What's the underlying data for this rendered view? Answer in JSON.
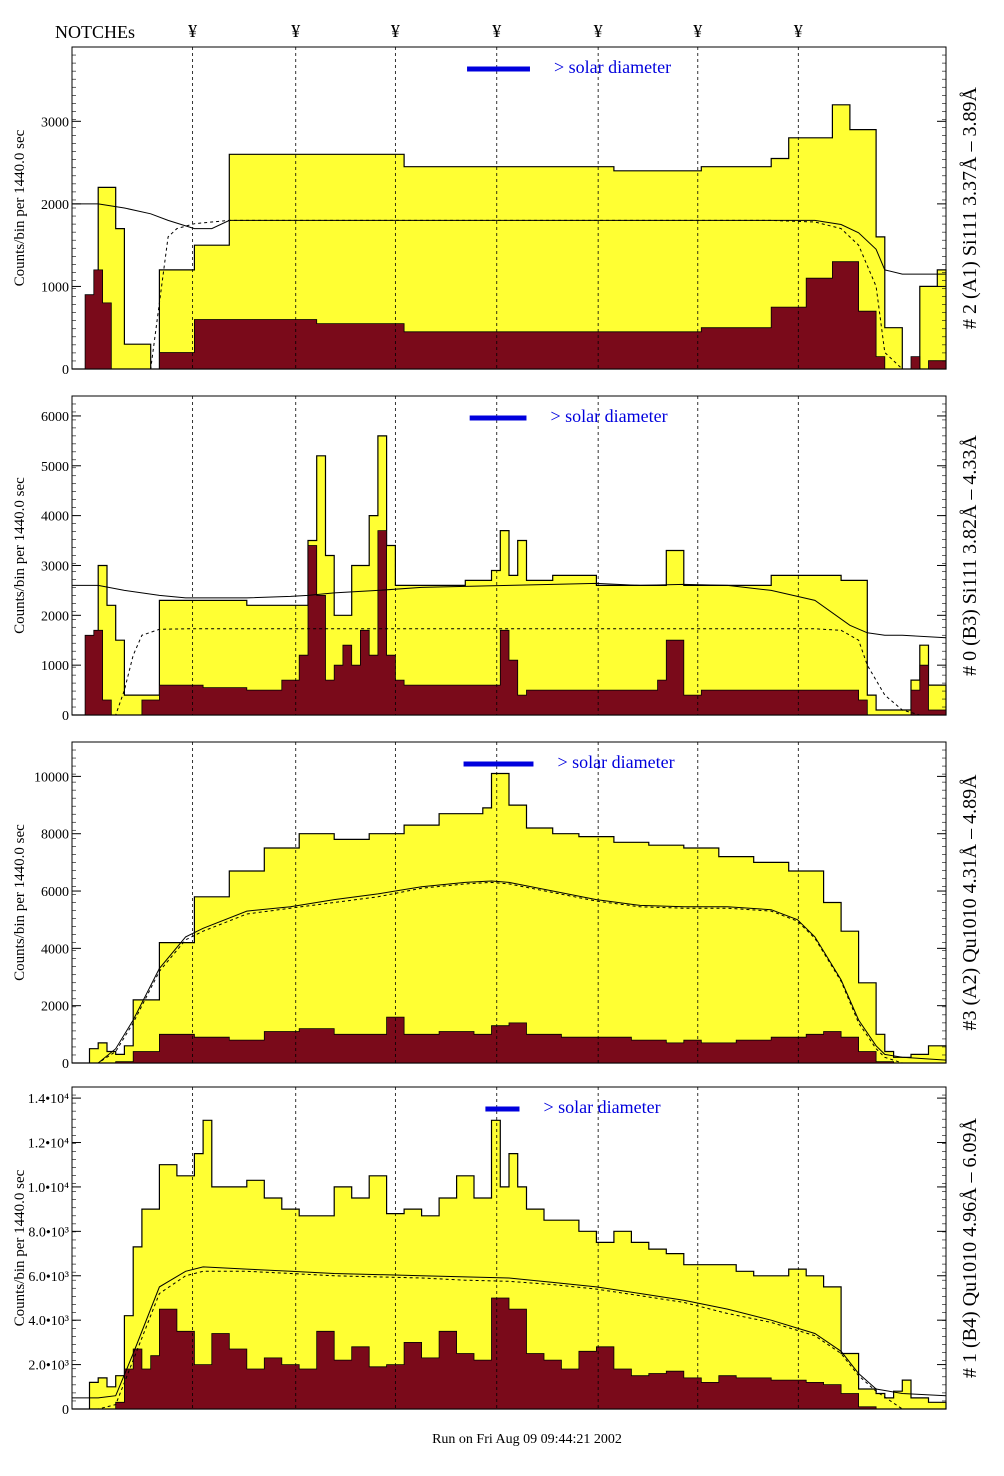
{
  "header": {
    "notches_label": "NOTCHEs",
    "notch_marker": "¥"
  },
  "footer": {
    "run_text": "Run on Fri Aug 09 09:44:21 2002"
  },
  "colors": {
    "total_fill": "#ffff33",
    "component_fill": "#7a0a1a",
    "solar_bar": "#0000dd",
    "axis": "#000000"
  },
  "chart_data": [
    {
      "type": "area",
      "panel_label": "# 2 (A1) Si111  3.37Å – 3.89Å",
      "ylabel": "Counts/bin per  1440.0 sec",
      "solar_label": "> solar diameter",
      "y_ticks": [
        0,
        1000,
        2000,
        3000
      ],
      "y_tick_labels": [
        "0",
        "1000",
        "2000",
        "3000"
      ],
      "ylim": [
        0,
        3900
      ],
      "x_range": [
        0,
        100
      ],
      "notch_x": [
        13.8,
        25.6,
        37.0,
        48.6,
        60.2,
        71.6,
        83.1
      ],
      "solar_bar": [
        45.2,
        52.4
      ],
      "total": {
        "x": [
          0,
          2,
          3,
          5,
          6,
          9,
          10,
          14,
          18,
          28,
          38,
          50,
          62,
          72,
          80,
          82,
          87,
          89,
          92,
          93,
          95,
          97,
          99,
          100
        ],
        "y": [
          0,
          800,
          2200,
          1700,
          300,
          0,
          1200,
          1500,
          2600,
          2600,
          2450,
          2450,
          2400,
          2450,
          2550,
          2800,
          3200,
          2900,
          1600,
          500,
          0,
          1000,
          1200,
          0
        ]
      },
      "component": {
        "x": [
          0,
          1.5,
          2.5,
          3.5,
          4.5,
          6,
          9,
          10,
          14,
          28,
          38,
          50,
          62,
          72,
          80,
          84,
          87,
          90,
          92,
          93,
          95,
          96,
          97,
          98,
          100
        ],
        "y": [
          0,
          900,
          1200,
          800,
          0,
          0,
          0,
          200,
          600,
          550,
          450,
          450,
          450,
          500,
          750,
          1100,
          1300,
          700,
          150,
          0,
          0,
          150,
          0,
          100,
          0
        ]
      },
      "smooth": {
        "x": [
          0,
          3,
          6,
          9,
          11,
          14,
          16,
          18,
          20,
          22,
          30,
          40,
          50,
          60,
          70,
          80,
          85,
          88,
          90,
          92,
          93,
          95,
          100
        ],
        "y": [
          2000,
          2000,
          1950,
          1880,
          1800,
          1700,
          1700,
          1800,
          1800,
          1800,
          1800,
          1800,
          1800,
          1800,
          1800,
          1800,
          1800,
          1750,
          1650,
          1450,
          1200,
          1150,
          1150
        ]
      },
      "dash": {
        "x": [
          0,
          3,
          6,
          9,
          11,
          12,
          14,
          16,
          18,
          20,
          22,
          30,
          40,
          50,
          60,
          70,
          80,
          85,
          88,
          90,
          92,
          93,
          95
        ],
        "y": [
          0,
          0,
          0,
          0,
          1600,
          1700,
          1760,
          1780,
          1800,
          1800,
          1800,
          1800,
          1800,
          1800,
          1800,
          1800,
          1800,
          1780,
          1700,
          1500,
          1000,
          200,
          0
        ]
      }
    },
    {
      "type": "area",
      "panel_label": "# 0 (B3) Si111  3.82Å – 4.33Å",
      "ylabel": "Counts/bin per  1440.0 sec",
      "solar_label": "> solar diameter",
      "y_ticks": [
        0,
        1000,
        2000,
        3000,
        4000,
        5000,
        6000
      ],
      "y_tick_labels": [
        "0",
        "1000",
        "2000",
        "3000",
        "4000",
        "5000",
        "6000"
      ],
      "ylim": [
        0,
        6400
      ],
      "x_range": [
        0,
        100
      ],
      "notch_x": [
        13.8,
        25.6,
        37.0,
        48.6,
        60.2,
        71.6,
        83.1
      ],
      "solar_bar": [
        45.5,
        52.0
      ],
      "total": {
        "x": [
          0,
          2,
          3,
          4,
          5,
          6,
          10,
          15,
          20,
          25,
          27,
          28,
          29,
          30,
          32,
          34,
          35,
          36,
          37,
          38,
          40,
          45,
          48,
          49,
          50,
          51,
          52,
          55,
          60,
          68,
          70,
          75,
          80,
          88,
          91,
          92,
          94,
          96,
          97,
          98,
          100
        ],
        "y": [
          0,
          1500,
          3000,
          2200,
          1500,
          400,
          2300,
          2300,
          2200,
          2200,
          3500,
          5200,
          3200,
          2000,
          3000,
          4000,
          5600,
          3400,
          2600,
          2600,
          2600,
          2700,
          2900,
          3700,
          2800,
          3500,
          2700,
          2800,
          2600,
          3300,
          2600,
          2600,
          2800,
          2700,
          400,
          100,
          100,
          700,
          1400,
          600,
          0
        ]
      },
      "component": {
        "x": [
          0,
          1.5,
          2.5,
          3.5,
          4.5,
          5.5,
          8,
          10,
          15,
          20,
          24,
          26,
          27,
          28,
          29,
          30,
          31,
          32,
          33,
          34,
          35,
          36,
          37,
          38,
          40,
          48,
          49,
          50,
          51,
          52,
          60,
          67,
          68,
          70,
          72,
          80,
          88,
          90,
          91,
          95,
          96,
          97,
          98,
          100
        ],
        "y": [
          0,
          1600,
          1700,
          300,
          0,
          0,
          300,
          600,
          550,
          500,
          700,
          1200,
          3400,
          2400,
          700,
          1000,
          1400,
          1000,
          1700,
          1200,
          3700,
          1200,
          700,
          600,
          600,
          600,
          1700,
          1100,
          400,
          500,
          500,
          700,
          1500,
          400,
          500,
          500,
          500,
          300,
          0,
          0,
          500,
          1000,
          100,
          0
        ]
      },
      "smooth": {
        "x": [
          0,
          3,
          6,
          8,
          10,
          13,
          15,
          20,
          25,
          27,
          30,
          35,
          40,
          45,
          50,
          55,
          60,
          65,
          70,
          75,
          80,
          85,
          89,
          91,
          93,
          95,
          100
        ],
        "y": [
          2600,
          2600,
          2500,
          2450,
          2400,
          2350,
          2350,
          2350,
          2380,
          2400,
          2450,
          2500,
          2560,
          2580,
          2600,
          2620,
          2640,
          2600,
          2620,
          2600,
          2500,
          2300,
          1800,
          1650,
          1600,
          1600,
          1550
        ]
      },
      "dash": {
        "x": [
          0,
          3,
          5,
          6,
          7,
          8,
          10,
          13,
          15,
          20,
          25,
          30,
          35,
          40,
          45,
          50,
          55,
          60,
          65,
          70,
          75,
          80,
          85,
          88,
          90,
          91,
          93,
          95,
          97
        ],
        "y": [
          0,
          0,
          0,
          500,
          1200,
          1600,
          1720,
          1730,
          1730,
          1730,
          1730,
          1730,
          1730,
          1730,
          1730,
          1730,
          1730,
          1730,
          1730,
          1730,
          1730,
          1730,
          1730,
          1700,
          1500,
          1000,
          400,
          100,
          0
        ]
      }
    },
    {
      "type": "area",
      "panel_label": "#3 (A2) Qu1010  4.31Å – 4.89Å",
      "ylabel": "Counts/bin per  1440.0 sec",
      "solar_label": "> solar diameter",
      "y_ticks": [
        0,
        2000,
        4000,
        6000,
        8000,
        10000
      ],
      "y_tick_labels": [
        "0",
        "2000",
        "4000",
        "6000",
        "8000",
        "10000"
      ],
      "ylim": [
        0,
        11200
      ],
      "x_range": [
        0,
        100
      ],
      "notch_x": [
        13.8,
        25.6,
        37.0,
        48.6,
        60.2,
        71.6,
        83.1
      ],
      "solar_bar": [
        44.8,
        52.8
      ],
      "total": {
        "x": [
          0,
          2,
          3,
          4,
          5,
          6,
          7,
          10,
          14,
          18,
          22,
          26,
          30,
          34,
          38,
          42,
          45,
          47,
          48,
          50,
          52,
          55,
          58,
          62,
          66,
          70,
          74,
          78,
          82,
          86,
          88,
          90,
          92,
          93,
          94,
          96,
          98,
          100
        ],
        "y": [
          0,
          500,
          700,
          400,
          300,
          600,
          2200,
          4200,
          5800,
          6700,
          7500,
          8000,
          7800,
          8000,
          8300,
          8700,
          8700,
          8900,
          10100,
          9000,
          8200,
          8000,
          7900,
          7700,
          7600,
          7500,
          7200,
          7000,
          6700,
          5600,
          4600,
          2800,
          1000,
          400,
          200,
          300,
          600,
          0
        ]
      },
      "component": {
        "x": [
          0,
          4,
          5,
          7,
          10,
          14,
          18,
          22,
          26,
          30,
          34,
          36,
          38,
          42,
          46,
          48,
          50,
          52,
          56,
          60,
          64,
          68,
          70,
          72,
          76,
          80,
          84,
          86,
          88,
          90,
          92,
          94,
          96,
          98,
          100
        ],
        "y": [
          0,
          0,
          50,
          400,
          1000,
          900,
          800,
          1100,
          1200,
          1000,
          1000,
          1600,
          1000,
          1100,
          1000,
          1300,
          1400,
          1000,
          900,
          900,
          800,
          700,
          800,
          700,
          800,
          900,
          1000,
          1100,
          900,
          400,
          50,
          0,
          0,
          0,
          0
        ]
      },
      "smooth": {
        "x": [
          0,
          3,
          5,
          7,
          10,
          13,
          15,
          20,
          25,
          30,
          35,
          40,
          45,
          48,
          50,
          55,
          60,
          65,
          70,
          75,
          80,
          83,
          85,
          88,
          90,
          92,
          93,
          95,
          100
        ],
        "y": [
          0,
          0,
          500,
          1500,
          3300,
          4400,
          4700,
          5300,
          5450,
          5700,
          5900,
          6150,
          6300,
          6350,
          6300,
          6000,
          5700,
          5500,
          5450,
          5450,
          5350,
          5000,
          4400,
          2900,
          1500,
          600,
          300,
          200,
          100
        ]
      },
      "dash": {
        "x": [
          0,
          3,
          5,
          7,
          10,
          13,
          15,
          20,
          25,
          30,
          35,
          40,
          45,
          48,
          50,
          55,
          60,
          65,
          70,
          75,
          80,
          83,
          85,
          88,
          90,
          92,
          93,
          95
        ],
        "y": [
          0,
          0,
          400,
          1400,
          3200,
          4300,
          4600,
          5200,
          5400,
          5600,
          5800,
          6100,
          6250,
          6300,
          6250,
          5950,
          5650,
          5450,
          5400,
          5400,
          5300,
          4950,
          4350,
          2850,
          1400,
          500,
          200,
          0
        ]
      }
    },
    {
      "type": "area",
      "panel_label": "# 1 (B4) Qu1010 4.96Å – 6.09Å",
      "ylabel": "Counts/bin per  1440.0 sec",
      "solar_label": "> solar diameter",
      "y_ticks": [
        0,
        2000,
        4000,
        6000,
        8000,
        10000,
        12000,
        14000
      ],
      "y_tick_labels": [
        "0",
        "2.0•10³",
        "4.0•10³",
        "6.0•10³",
        "8.0•10³",
        "1.0•10⁴",
        "1.2•10⁴",
        "1.4•10⁴"
      ],
      "ylim": [
        0,
        14500
      ],
      "x_range": [
        0,
        100
      ],
      "notch_x": [
        13.8,
        25.6,
        37.0,
        48.6,
        60.2,
        71.6,
        83.1
      ],
      "solar_bar": [
        47.3,
        51.2
      ],
      "total": {
        "x": [
          0,
          2,
          3,
          4,
          5,
          6,
          7,
          8,
          10,
          12,
          14,
          15,
          16,
          18,
          20,
          22,
          24,
          26,
          28,
          30,
          32,
          34,
          36,
          38,
          40,
          42,
          44,
          46,
          48,
          49,
          50,
          51,
          52,
          54,
          56,
          58,
          60,
          62,
          64,
          66,
          68,
          70,
          72,
          74,
          76,
          78,
          80,
          82,
          84,
          86,
          88,
          90,
          92,
          93,
          94,
          95,
          96,
          98,
          100
        ],
        "y": [
          0,
          1200,
          1400,
          1000,
          1500,
          4200,
          7300,
          9000,
          11000,
          10500,
          11500,
          13000,
          10000,
          10000,
          10300,
          9500,
          9000,
          8700,
          8700,
          10000,
          9500,
          10500,
          8800,
          9000,
          8700,
          9500,
          10500,
          9500,
          13000,
          10000,
          11500,
          10000,
          9000,
          8500,
          8500,
          8000,
          7500,
          8000,
          7500,
          7200,
          7000,
          6500,
          6500,
          6500,
          6200,
          6000,
          6000,
          6300,
          6000,
          5500,
          2500,
          900,
          700,
          500,
          800,
          1300,
          500,
          300,
          0
        ]
      },
      "component": {
        "x": [
          0,
          4,
          5,
          6,
          7,
          8,
          9,
          10,
          12,
          14,
          16,
          18,
          20,
          22,
          24,
          26,
          28,
          30,
          32,
          34,
          36,
          38,
          40,
          42,
          44,
          46,
          48,
          50,
          52,
          54,
          56,
          58,
          60,
          62,
          64,
          66,
          68,
          70,
          72,
          74,
          76,
          78,
          80,
          82,
          84,
          86,
          88,
          90,
          92,
          100
        ],
        "y": [
          0,
          0,
          300,
          1800,
          2700,
          1800,
          2400,
          4500,
          3500,
          2000,
          3400,
          2700,
          1800,
          2300,
          2000,
          1800,
          3500,
          2200,
          2800,
          1900,
          2000,
          3000,
          2300,
          3500,
          2500,
          2200,
          5000,
          4500,
          2500,
          2200,
          1800,
          2600,
          2800,
          1800,
          1500,
          1600,
          1700,
          1400,
          1200,
          1500,
          1400,
          1400,
          1300,
          1300,
          1200,
          1100,
          700,
          100,
          0,
          0
        ]
      },
      "smooth": {
        "x": [
          0,
          3,
          5,
          7,
          10,
          13,
          15,
          20,
          25,
          30,
          35,
          40,
          45,
          50,
          55,
          60,
          65,
          70,
          75,
          80,
          85,
          88,
          90,
          92,
          95,
          100
        ],
        "y": [
          500,
          500,
          600,
          2500,
          5500,
          6200,
          6400,
          6300,
          6200,
          6100,
          6050,
          6000,
          5950,
          5900,
          5700,
          5500,
          5200,
          4900,
          4500,
          4000,
          3400,
          2600,
          1600,
          900,
          700,
          600
        ]
      },
      "dash": {
        "x": [
          0,
          3,
          5,
          7,
          10,
          13,
          15,
          20,
          25,
          30,
          35,
          40,
          45,
          50,
          55,
          60,
          65,
          70,
          75,
          80,
          85,
          88,
          90,
          92,
          95
        ],
        "y": [
          0,
          0,
          200,
          2200,
          5200,
          6000,
          6200,
          6200,
          6100,
          6000,
          5950,
          5900,
          5800,
          5750,
          5600,
          5400,
          5100,
          4800,
          4300,
          3900,
          3300,
          2500,
          1500,
          800,
          0
        ]
      }
    }
  ]
}
